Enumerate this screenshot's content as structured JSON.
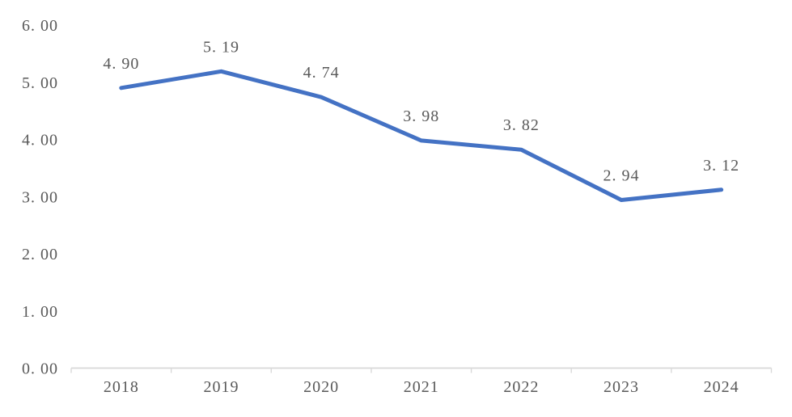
{
  "chart": {
    "background_color": "#ffffff",
    "text_color": "#595959",
    "axis_color": "#d9d9d9",
    "series_color": "#4472c4"
  },
  "chart_data": {
    "type": "line",
    "title": "",
    "xlabel": "",
    "ylabel": "",
    "categories": [
      "2018",
      "2019",
      "2020",
      "2021",
      "2022",
      "2023",
      "2024"
    ],
    "values": [
      4.9,
      5.19,
      4.74,
      3.98,
      3.82,
      2.94,
      3.12
    ],
    "data_labels": [
      "4. 90",
      "5. 19",
      "4. 74",
      "3. 98",
      "3. 82",
      "2. 94",
      "3. 12"
    ],
    "y_tick_labels": [
      "0. 00",
      "1. 00",
      "2. 00",
      "3. 00",
      "4. 00",
      "5. 00",
      "6. 00"
    ],
    "ylim": [
      0,
      6
    ],
    "y_tick_step": 1,
    "grid": false,
    "legend": "none",
    "line_width": 5,
    "markers": "none",
    "data_label_position": "above"
  }
}
